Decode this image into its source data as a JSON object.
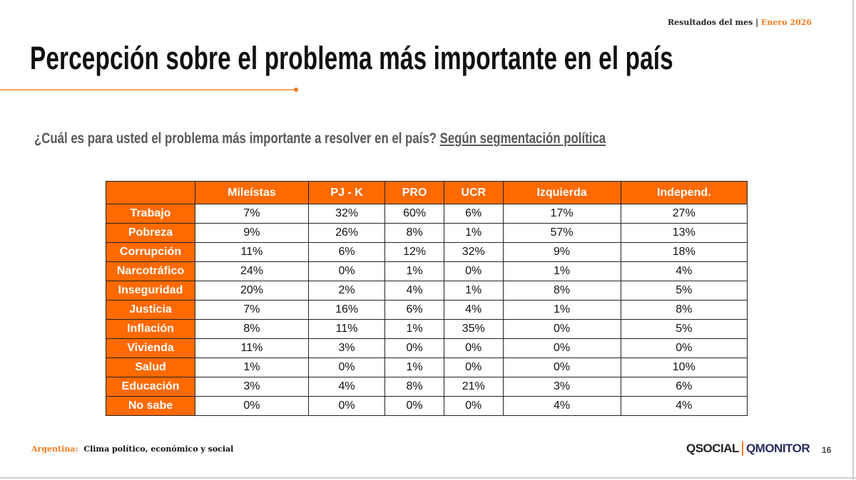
{
  "header": {
    "section": "Resultados del mes",
    "separator": "|",
    "period": "Enero 2026"
  },
  "title": "Percepción sobre el problema más importante en el país",
  "question": {
    "text": "¿Cuál es para usted el problema más importante a resolver en el país?",
    "segment": "Según segmentación política"
  },
  "table": {
    "columns": [
      "",
      "Mileístas",
      "PJ - K",
      "PRO",
      "UCR",
      "Izquierda",
      "Independ."
    ],
    "rows": [
      {
        "label": "Trabajo",
        "values": [
          "7%",
          "32%",
          "60%",
          "6%",
          "17%",
          "27%"
        ]
      },
      {
        "label": "Pobreza",
        "values": [
          "9%",
          "26%",
          "8%",
          "1%",
          "57%",
          "13%"
        ]
      },
      {
        "label": "Corrupción",
        "values": [
          "11%",
          "6%",
          "12%",
          "32%",
          "9%",
          "18%"
        ]
      },
      {
        "label": "Narcotráfico",
        "values": [
          "24%",
          "0%",
          "1%",
          "0%",
          "1%",
          "4%"
        ]
      },
      {
        "label": "Inseguridad",
        "values": [
          "20%",
          "2%",
          "4%",
          "1%",
          "8%",
          "5%"
        ]
      },
      {
        "label": "Justicia",
        "values": [
          "7%",
          "16%",
          "6%",
          "4%",
          "1%",
          "8%"
        ]
      },
      {
        "label": "Inflación",
        "values": [
          "8%",
          "11%",
          "1%",
          "35%",
          "0%",
          "5%"
        ]
      },
      {
        "label": "Vivienda",
        "values": [
          "11%",
          "3%",
          "0%",
          "0%",
          "0%",
          "0%"
        ]
      },
      {
        "label": "Salud",
        "values": [
          "1%",
          "0%",
          "1%",
          "0%",
          "0%",
          "10%"
        ]
      },
      {
        "label": "Educación",
        "values": [
          "3%",
          "4%",
          "8%",
          "21%",
          "3%",
          "6%"
        ]
      },
      {
        "label": "No sabe",
        "values": [
          "0%",
          "0%",
          "0%",
          "0%",
          "4%",
          "4%"
        ]
      }
    ]
  },
  "footer": {
    "country": "Argentina:",
    "subtitle": "Clima político, económico y social",
    "logo_left": "QSOCIAL",
    "logo_right": "QMONITOR",
    "page": "16"
  },
  "colors": {
    "accent": "#ff6a00",
    "text": "#111111",
    "question": "#595959"
  }
}
